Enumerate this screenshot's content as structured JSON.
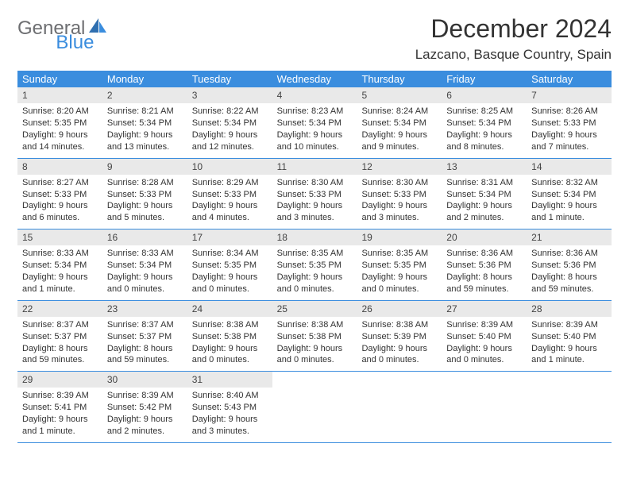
{
  "colors": {
    "accent": "#3a8dde",
    "logo_gray": "#6d6e71",
    "text": "#333333",
    "day_header_bg": "#e9e9e9",
    "row_border": "#3a8dde",
    "background": "#ffffff"
  },
  "typography": {
    "font_family": "Arial",
    "title_fontsize": 32,
    "location_fontsize": 17,
    "weekday_fontsize": 13,
    "day_number_fontsize": 12,
    "body_fontsize": 11
  },
  "logo": {
    "text1": "General",
    "text2": "Blue"
  },
  "title": "December 2024",
  "location": "Lazcano, Basque Country, Spain",
  "weekdays": [
    "Sunday",
    "Monday",
    "Tuesday",
    "Wednesday",
    "Thursday",
    "Friday",
    "Saturday"
  ],
  "layout": {
    "columns": 7,
    "rows_of_weeks": 5
  },
  "weeks": [
    [
      {
        "n": "1",
        "sunrise": "Sunrise: 8:20 AM",
        "sunset": "Sunset: 5:35 PM",
        "d1": "Daylight: 9 hours",
        "d2": "and 14 minutes."
      },
      {
        "n": "2",
        "sunrise": "Sunrise: 8:21 AM",
        "sunset": "Sunset: 5:34 PM",
        "d1": "Daylight: 9 hours",
        "d2": "and 13 minutes."
      },
      {
        "n": "3",
        "sunrise": "Sunrise: 8:22 AM",
        "sunset": "Sunset: 5:34 PM",
        "d1": "Daylight: 9 hours",
        "d2": "and 12 minutes."
      },
      {
        "n": "4",
        "sunrise": "Sunrise: 8:23 AM",
        "sunset": "Sunset: 5:34 PM",
        "d1": "Daylight: 9 hours",
        "d2": "and 10 minutes."
      },
      {
        "n": "5",
        "sunrise": "Sunrise: 8:24 AM",
        "sunset": "Sunset: 5:34 PM",
        "d1": "Daylight: 9 hours",
        "d2": "and 9 minutes."
      },
      {
        "n": "6",
        "sunrise": "Sunrise: 8:25 AM",
        "sunset": "Sunset: 5:34 PM",
        "d1": "Daylight: 9 hours",
        "d2": "and 8 minutes."
      },
      {
        "n": "7",
        "sunrise": "Sunrise: 8:26 AM",
        "sunset": "Sunset: 5:33 PM",
        "d1": "Daylight: 9 hours",
        "d2": "and 7 minutes."
      }
    ],
    [
      {
        "n": "8",
        "sunrise": "Sunrise: 8:27 AM",
        "sunset": "Sunset: 5:33 PM",
        "d1": "Daylight: 9 hours",
        "d2": "and 6 minutes."
      },
      {
        "n": "9",
        "sunrise": "Sunrise: 8:28 AM",
        "sunset": "Sunset: 5:33 PM",
        "d1": "Daylight: 9 hours",
        "d2": "and 5 minutes."
      },
      {
        "n": "10",
        "sunrise": "Sunrise: 8:29 AM",
        "sunset": "Sunset: 5:33 PM",
        "d1": "Daylight: 9 hours",
        "d2": "and 4 minutes."
      },
      {
        "n": "11",
        "sunrise": "Sunrise: 8:30 AM",
        "sunset": "Sunset: 5:33 PM",
        "d1": "Daylight: 9 hours",
        "d2": "and 3 minutes."
      },
      {
        "n": "12",
        "sunrise": "Sunrise: 8:30 AM",
        "sunset": "Sunset: 5:33 PM",
        "d1": "Daylight: 9 hours",
        "d2": "and 3 minutes."
      },
      {
        "n": "13",
        "sunrise": "Sunrise: 8:31 AM",
        "sunset": "Sunset: 5:34 PM",
        "d1": "Daylight: 9 hours",
        "d2": "and 2 minutes."
      },
      {
        "n": "14",
        "sunrise": "Sunrise: 8:32 AM",
        "sunset": "Sunset: 5:34 PM",
        "d1": "Daylight: 9 hours",
        "d2": "and 1 minute."
      }
    ],
    [
      {
        "n": "15",
        "sunrise": "Sunrise: 8:33 AM",
        "sunset": "Sunset: 5:34 PM",
        "d1": "Daylight: 9 hours",
        "d2": "and 1 minute."
      },
      {
        "n": "16",
        "sunrise": "Sunrise: 8:33 AM",
        "sunset": "Sunset: 5:34 PM",
        "d1": "Daylight: 9 hours",
        "d2": "and 0 minutes."
      },
      {
        "n": "17",
        "sunrise": "Sunrise: 8:34 AM",
        "sunset": "Sunset: 5:35 PM",
        "d1": "Daylight: 9 hours",
        "d2": "and 0 minutes."
      },
      {
        "n": "18",
        "sunrise": "Sunrise: 8:35 AM",
        "sunset": "Sunset: 5:35 PM",
        "d1": "Daylight: 9 hours",
        "d2": "and 0 minutes."
      },
      {
        "n": "19",
        "sunrise": "Sunrise: 8:35 AM",
        "sunset": "Sunset: 5:35 PM",
        "d1": "Daylight: 9 hours",
        "d2": "and 0 minutes."
      },
      {
        "n": "20",
        "sunrise": "Sunrise: 8:36 AM",
        "sunset": "Sunset: 5:36 PM",
        "d1": "Daylight: 8 hours",
        "d2": "and 59 minutes."
      },
      {
        "n": "21",
        "sunrise": "Sunrise: 8:36 AM",
        "sunset": "Sunset: 5:36 PM",
        "d1": "Daylight: 8 hours",
        "d2": "and 59 minutes."
      }
    ],
    [
      {
        "n": "22",
        "sunrise": "Sunrise: 8:37 AM",
        "sunset": "Sunset: 5:37 PM",
        "d1": "Daylight: 8 hours",
        "d2": "and 59 minutes."
      },
      {
        "n": "23",
        "sunrise": "Sunrise: 8:37 AM",
        "sunset": "Sunset: 5:37 PM",
        "d1": "Daylight: 8 hours",
        "d2": "and 59 minutes."
      },
      {
        "n": "24",
        "sunrise": "Sunrise: 8:38 AM",
        "sunset": "Sunset: 5:38 PM",
        "d1": "Daylight: 9 hours",
        "d2": "and 0 minutes."
      },
      {
        "n": "25",
        "sunrise": "Sunrise: 8:38 AM",
        "sunset": "Sunset: 5:38 PM",
        "d1": "Daylight: 9 hours",
        "d2": "and 0 minutes."
      },
      {
        "n": "26",
        "sunrise": "Sunrise: 8:38 AM",
        "sunset": "Sunset: 5:39 PM",
        "d1": "Daylight: 9 hours",
        "d2": "and 0 minutes."
      },
      {
        "n": "27",
        "sunrise": "Sunrise: 8:39 AM",
        "sunset": "Sunset: 5:40 PM",
        "d1": "Daylight: 9 hours",
        "d2": "and 0 minutes."
      },
      {
        "n": "28",
        "sunrise": "Sunrise: 8:39 AM",
        "sunset": "Sunset: 5:40 PM",
        "d1": "Daylight: 9 hours",
        "d2": "and 1 minute."
      }
    ],
    [
      {
        "n": "29",
        "sunrise": "Sunrise: 8:39 AM",
        "sunset": "Sunset: 5:41 PM",
        "d1": "Daylight: 9 hours",
        "d2": "and 1 minute."
      },
      {
        "n": "30",
        "sunrise": "Sunrise: 8:39 AM",
        "sunset": "Sunset: 5:42 PM",
        "d1": "Daylight: 9 hours",
        "d2": "and 2 minutes."
      },
      {
        "n": "31",
        "sunrise": "Sunrise: 8:40 AM",
        "sunset": "Sunset: 5:43 PM",
        "d1": "Daylight: 9 hours",
        "d2": "and 3 minutes."
      },
      {
        "empty": true
      },
      {
        "empty": true
      },
      {
        "empty": true
      },
      {
        "empty": true
      }
    ]
  ]
}
